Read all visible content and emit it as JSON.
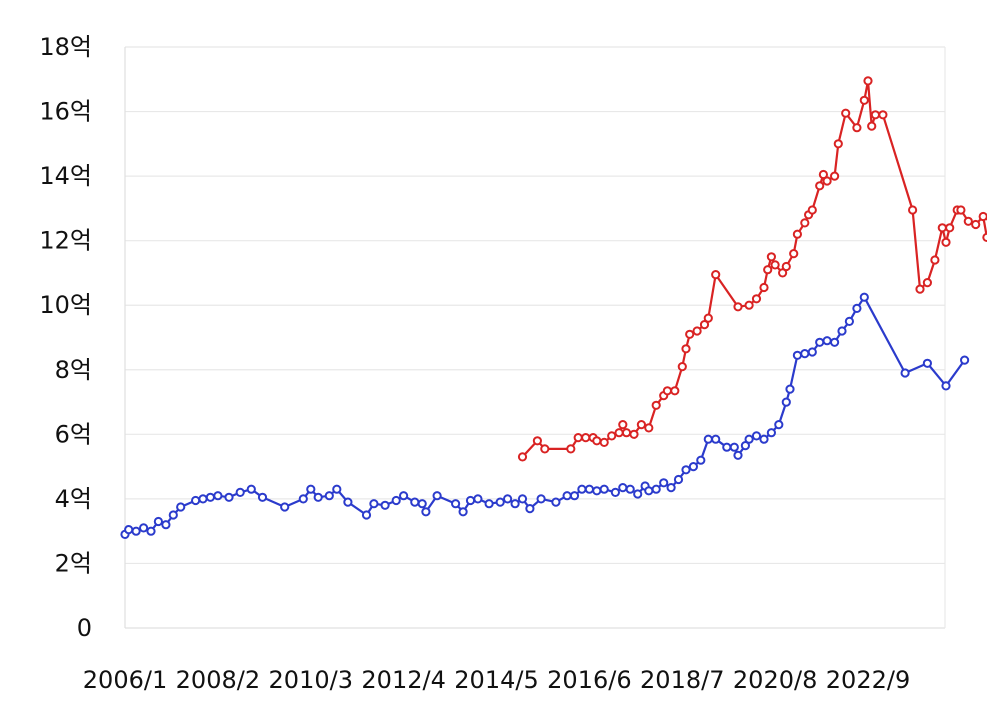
{
  "chart_data": {
    "type": "line",
    "title": "",
    "xlabel": "",
    "ylabel": "",
    "ylim": [
      0,
      18
    ],
    "xlim": [
      "2006-01",
      "2024-11"
    ],
    "y_ticks": [
      {
        "value": 0,
        "label": "0"
      },
      {
        "value": 2,
        "label": "2억"
      },
      {
        "value": 4,
        "label": "4억"
      },
      {
        "value": 6,
        "label": "6억"
      },
      {
        "value": 8,
        "label": "8억"
      },
      {
        "value": 10,
        "label": "10억"
      },
      {
        "value": 12,
        "label": "12억"
      },
      {
        "value": 14,
        "label": "14억"
      },
      {
        "value": 16,
        "label": "16억"
      },
      {
        "value": 18,
        "label": "18억"
      }
    ],
    "x_ticks": [
      {
        "value": "2006-01",
        "label": "2006/1"
      },
      {
        "value": "2008-02",
        "label": "2008/2"
      },
      {
        "value": "2010-03",
        "label": "2010/3"
      },
      {
        "value": "2012-04",
        "label": "2012/4"
      },
      {
        "value": "2014-05",
        "label": "2014/5"
      },
      {
        "value": "2016-06",
        "label": "2016/6"
      },
      {
        "value": "2018-07",
        "label": "2018/7"
      },
      {
        "value": "2020-08",
        "label": "2020/8"
      },
      {
        "value": "2022-09",
        "label": "2022/9"
      }
    ],
    "grid": true,
    "legend": "none",
    "series": [
      {
        "color": "#2b3bcc",
        "points": [
          [
            "2006-01",
            2.9
          ],
          [
            "2006-02",
            3.05
          ],
          [
            "2006-04",
            3.0
          ],
          [
            "2006-06",
            3.1
          ],
          [
            "2006-08",
            3.0
          ],
          [
            "2006-10",
            3.3
          ],
          [
            "2006-12",
            3.2
          ],
          [
            "2007-02",
            3.5
          ],
          [
            "2007-04",
            3.75
          ],
          [
            "2007-08",
            3.95
          ],
          [
            "2007-10",
            4.0
          ],
          [
            "2007-12",
            4.05
          ],
          [
            "2008-02",
            4.1
          ],
          [
            "2008-05",
            4.05
          ],
          [
            "2008-08",
            4.2
          ],
          [
            "2008-11",
            4.3
          ],
          [
            "2009-02",
            4.05
          ],
          [
            "2009-08",
            3.75
          ],
          [
            "2010-01",
            4.0
          ],
          [
            "2010-03",
            4.3
          ],
          [
            "2010-05",
            4.05
          ],
          [
            "2010-08",
            4.1
          ],
          [
            "2010-10",
            4.3
          ],
          [
            "2011-01",
            3.9
          ],
          [
            "2011-06",
            3.5
          ],
          [
            "2011-08",
            3.85
          ],
          [
            "2011-11",
            3.8
          ],
          [
            "2012-02",
            3.95
          ],
          [
            "2012-04",
            4.1
          ],
          [
            "2012-07",
            3.9
          ],
          [
            "2012-09",
            3.85
          ],
          [
            "2012-10",
            3.6
          ],
          [
            "2013-01",
            4.1
          ],
          [
            "2013-06",
            3.85
          ],
          [
            "2013-08",
            3.6
          ],
          [
            "2013-10",
            3.95
          ],
          [
            "2013-12",
            4.0
          ],
          [
            "2014-03",
            3.85
          ],
          [
            "2014-06",
            3.9
          ],
          [
            "2014-08",
            4.0
          ],
          [
            "2014-10",
            3.85
          ],
          [
            "2014-12",
            4.0
          ],
          [
            "2015-02",
            3.7
          ],
          [
            "2015-05",
            4.0
          ],
          [
            "2015-09",
            3.9
          ],
          [
            "2015-12",
            4.1
          ],
          [
            "2016-02",
            4.1
          ],
          [
            "2016-04",
            4.3
          ],
          [
            "2016-06",
            4.3
          ],
          [
            "2016-08",
            4.25
          ],
          [
            "2016-10",
            4.3
          ],
          [
            "2017-01",
            4.2
          ],
          [
            "2017-03",
            4.35
          ],
          [
            "2017-05",
            4.3
          ],
          [
            "2017-07",
            4.15
          ],
          [
            "2017-09",
            4.4
          ],
          [
            "2017-10",
            4.25
          ],
          [
            "2017-12",
            4.3
          ],
          [
            "2018-02",
            4.5
          ],
          [
            "2018-04",
            4.35
          ],
          [
            "2018-06",
            4.6
          ],
          [
            "2018-08",
            4.9
          ],
          [
            "2018-10",
            5.0
          ],
          [
            "2018-12",
            5.2
          ],
          [
            "2019-02",
            5.85
          ],
          [
            "2019-04",
            5.85
          ],
          [
            "2019-07",
            5.6
          ],
          [
            "2019-09",
            5.6
          ],
          [
            "2019-10",
            5.35
          ],
          [
            "2019-12",
            5.65
          ],
          [
            "2020-01",
            5.85
          ],
          [
            "2020-03",
            5.95
          ],
          [
            "2020-05",
            5.85
          ],
          [
            "2020-07",
            6.05
          ],
          [
            "2020-09",
            6.3
          ],
          [
            "2020-11",
            7.0
          ],
          [
            "2020-12",
            7.4
          ],
          [
            "2021-02",
            8.45
          ],
          [
            "2021-04",
            8.5
          ],
          [
            "2021-06",
            8.55
          ],
          [
            "2021-08",
            8.85
          ],
          [
            "2021-10",
            8.9
          ],
          [
            "2021-12",
            8.85
          ],
          [
            "2022-02",
            9.2
          ],
          [
            "2022-04",
            9.5
          ],
          [
            "2022-06",
            9.9
          ],
          [
            "2022-08",
            10.25
          ],
          [
            "2023-07",
            7.9
          ],
          [
            "2024-01",
            8.2
          ],
          [
            "2024-06",
            7.5
          ],
          [
            "2024-11",
            8.3
          ]
        ]
      },
      {
        "color": "#d92323",
        "points": [
          [
            "2014-12",
            5.3
          ],
          [
            "2015-04",
            5.8
          ],
          [
            "2015-06",
            5.55
          ],
          [
            "2016-01",
            5.55
          ],
          [
            "2016-03",
            5.9
          ],
          [
            "2016-05",
            5.9
          ],
          [
            "2016-07",
            5.9
          ],
          [
            "2016-08",
            5.8
          ],
          [
            "2016-10",
            5.75
          ],
          [
            "2016-12",
            5.95
          ],
          [
            "2017-02",
            6.05
          ],
          [
            "2017-03",
            6.3
          ],
          [
            "2017-04",
            6.05
          ],
          [
            "2017-06",
            6.0
          ],
          [
            "2017-08",
            6.3
          ],
          [
            "2017-10",
            6.2
          ],
          [
            "2017-12",
            6.9
          ],
          [
            "2018-02",
            7.2
          ],
          [
            "2018-03",
            7.35
          ],
          [
            "2018-05",
            7.35
          ],
          [
            "2018-07",
            8.1
          ],
          [
            "2018-08",
            8.65
          ],
          [
            "2018-09",
            9.1
          ],
          [
            "2018-11",
            9.2
          ],
          [
            "2019-01",
            9.4
          ],
          [
            "2019-02",
            9.6
          ],
          [
            "2019-04",
            10.95
          ],
          [
            "2019-10",
            9.95
          ],
          [
            "2020-01",
            10.0
          ],
          [
            "2020-03",
            10.2
          ],
          [
            "2020-05",
            10.55
          ],
          [
            "2020-06",
            11.1
          ],
          [
            "2020-07",
            11.5
          ],
          [
            "2020-08",
            11.25
          ],
          [
            "2020-10",
            11.0
          ],
          [
            "2020-11",
            11.2
          ],
          [
            "2021-01",
            11.6
          ],
          [
            "2021-02",
            12.2
          ],
          [
            "2021-04",
            12.55
          ],
          [
            "2021-05",
            12.8
          ],
          [
            "2021-06",
            12.95
          ],
          [
            "2021-08",
            13.7
          ],
          [
            "2021-09",
            14.05
          ],
          [
            "2021-10",
            13.85
          ],
          [
            "2021-12",
            14.0
          ],
          [
            "2022-01",
            15.0
          ],
          [
            "2022-03",
            15.95
          ],
          [
            "2022-06",
            15.5
          ],
          [
            "2022-08",
            16.35
          ],
          [
            "2022-09",
            16.95
          ],
          [
            "2022-10",
            15.55
          ],
          [
            "2022-11",
            15.9
          ],
          [
            "2023-01",
            15.9
          ],
          [
            "2023-09",
            12.95
          ],
          [
            "2023-11",
            10.5
          ],
          [
            "2024-01",
            10.7
          ],
          [
            "2024-03",
            11.4
          ],
          [
            "2024-05",
            12.4
          ],
          [
            "2024-06",
            11.95
          ],
          [
            "2024-07",
            12.4
          ],
          [
            "2024-09",
            12.95
          ],
          [
            "2024-10",
            12.95
          ],
          [
            "2024-12",
            12.6
          ],
          [
            "2025-02",
            12.5
          ],
          [
            "2025-04",
            12.75
          ],
          [
            "2025-05",
            12.1
          ],
          [
            "2025-06",
            12.7
          ],
          [
            "2025-08",
            12.9
          ]
        ]
      }
    ]
  }
}
